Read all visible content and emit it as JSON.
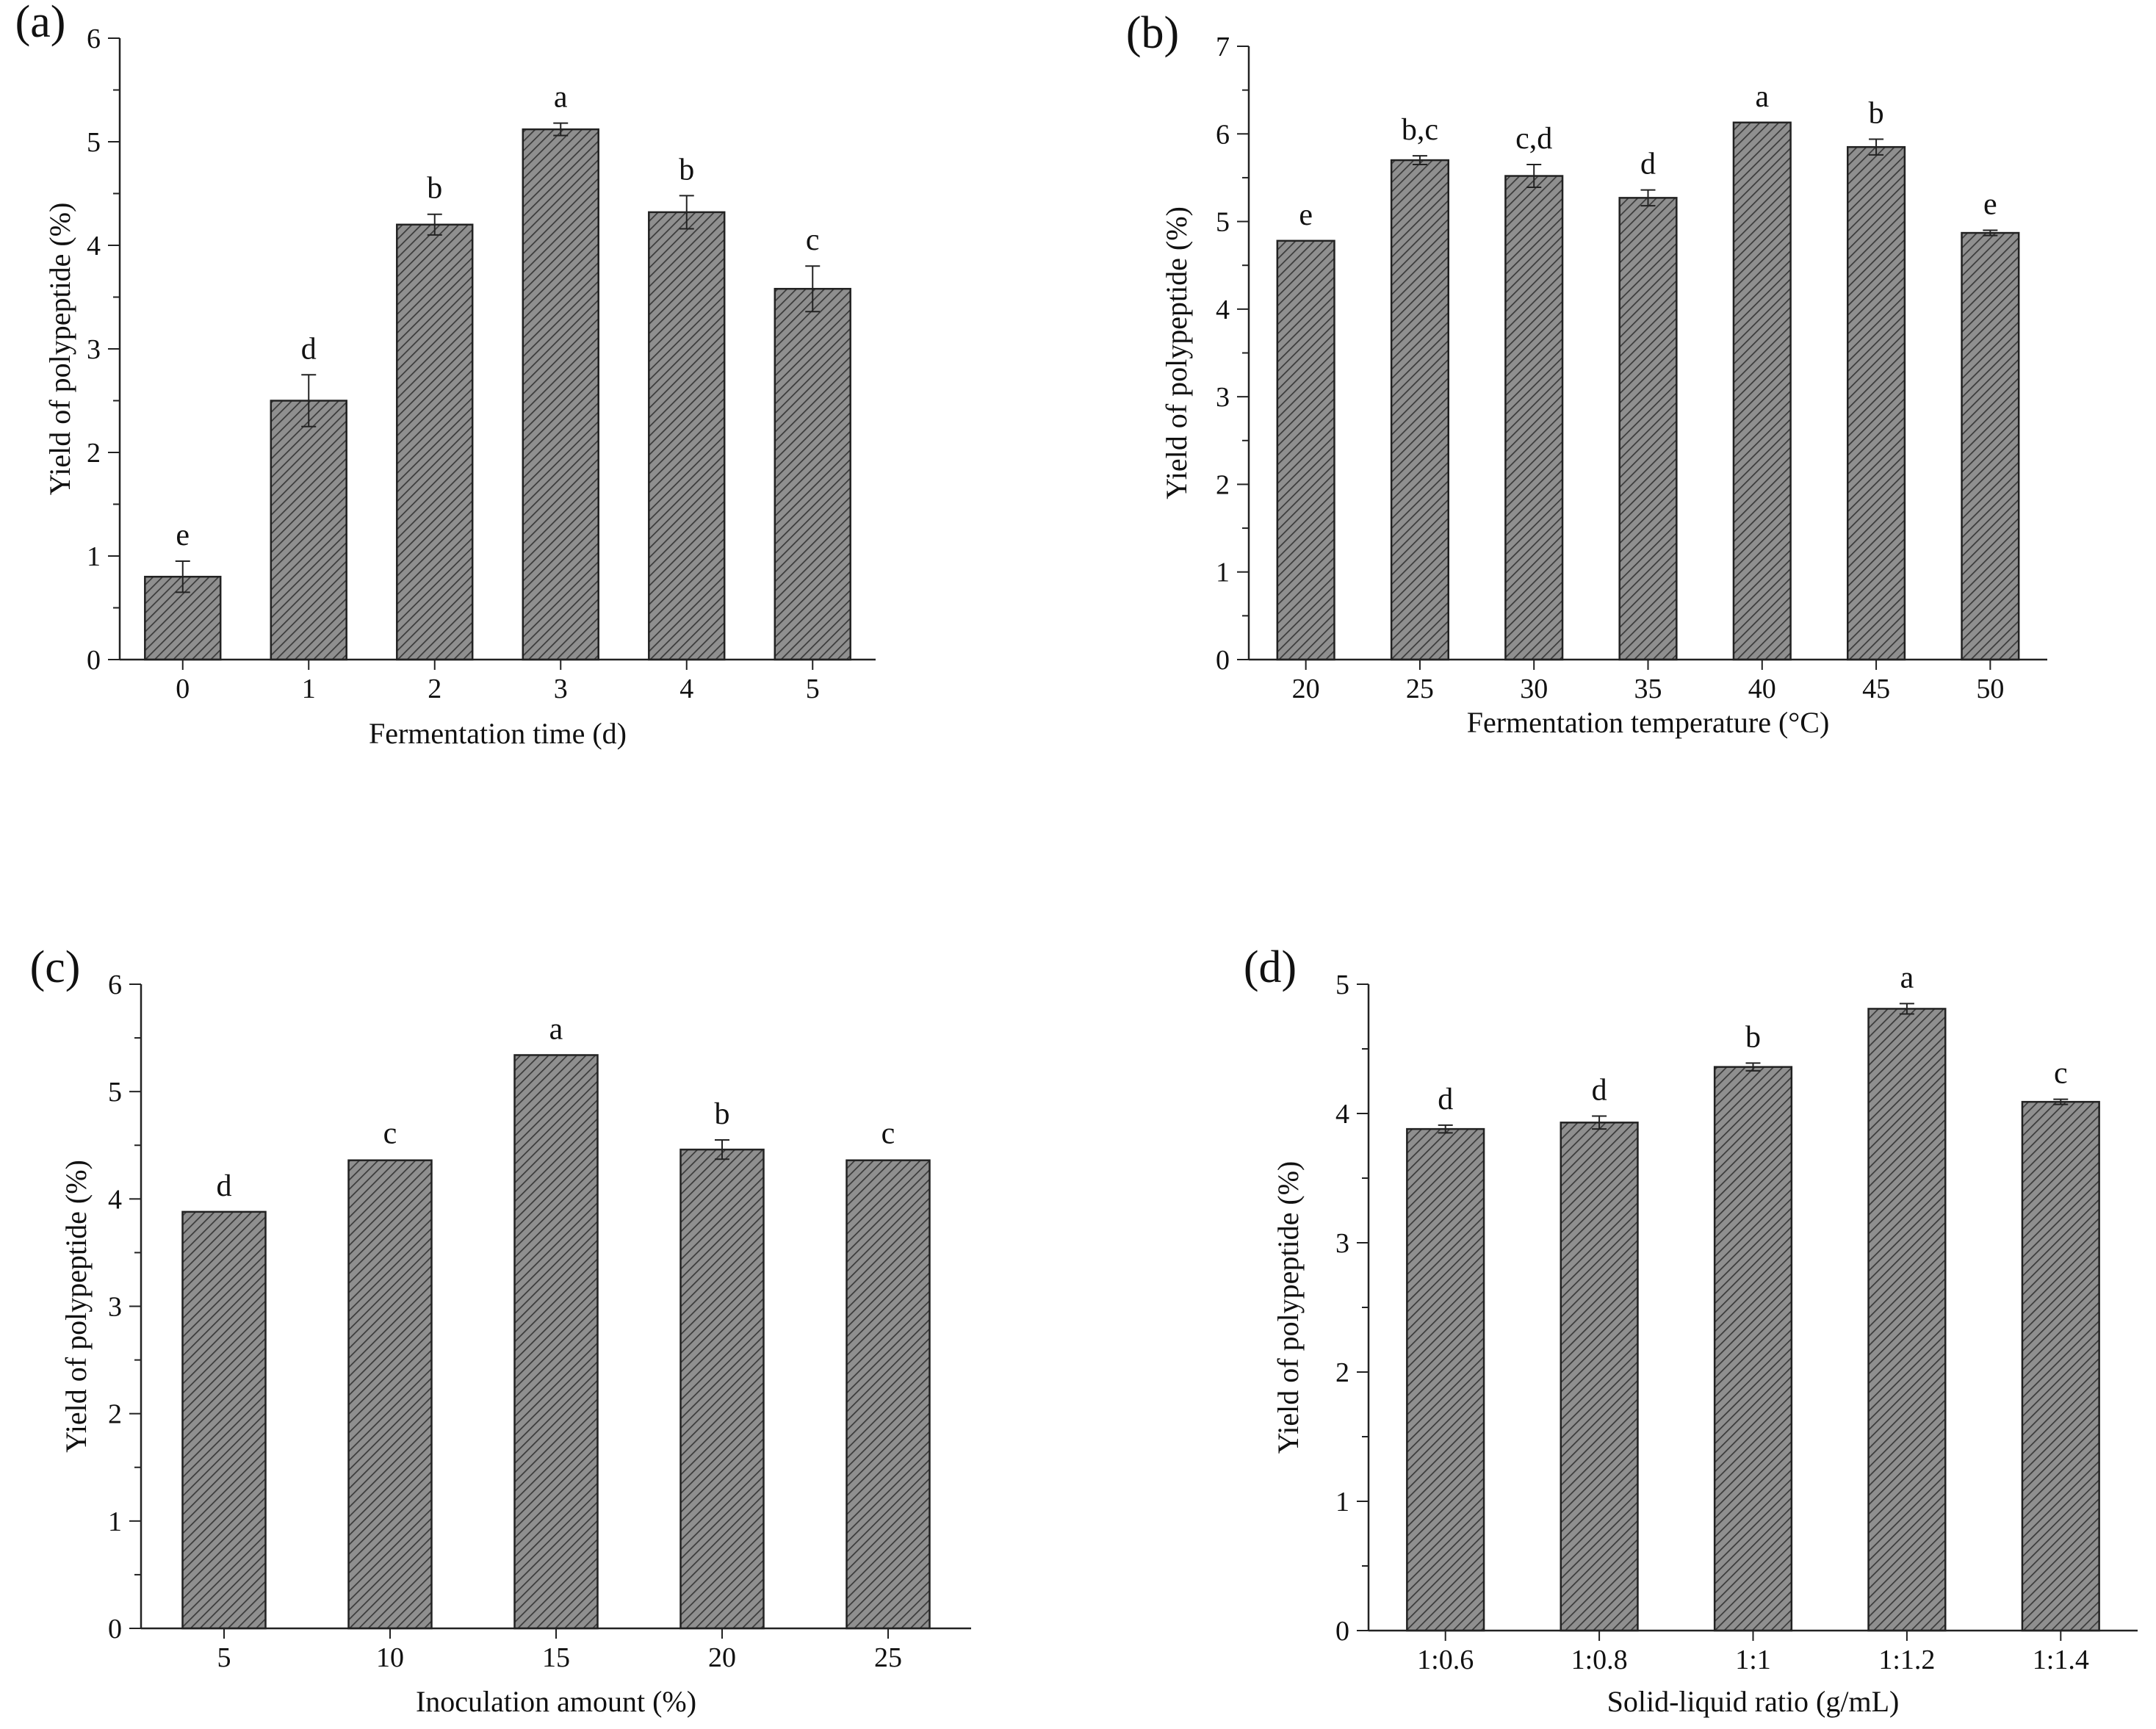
{
  "colors": {
    "bar_fill": "#8f8f8f",
    "hatch": "#3a3a3a",
    "axis": "#222222",
    "text": "#111111"
  },
  "chart_data": [
    {
      "type": "bar",
      "panel_label": "(a)",
      "title": "",
      "xlabel": "Fermentation time (d)",
      "ylabel": "Yield of polypeptide (%)",
      "ylim": [
        0,
        6
      ],
      "yticks": [
        0,
        1,
        2,
        3,
        4,
        5,
        6
      ],
      "categories": [
        "0",
        "1",
        "2",
        "3",
        "4",
        "5"
      ],
      "values": [
        0.8,
        2.5,
        4.2,
        5.12,
        4.32,
        3.58
      ],
      "errors": [
        0.15,
        0.25,
        0.1,
        0.06,
        0.16,
        0.22
      ],
      "significance": [
        "e",
        "d",
        "b",
        "a",
        "b",
        "c"
      ]
    },
    {
      "type": "bar",
      "panel_label": "(b)",
      "title": "",
      "xlabel": "Fermentation temperature (°C)",
      "ylabel": "Yield of polypeptide (%)",
      "ylim": [
        0,
        7
      ],
      "yticks": [
        0,
        1,
        2,
        3,
        4,
        5,
        6,
        7
      ],
      "categories": [
        "20",
        "25",
        "30",
        "35",
        "40",
        "45",
        "50"
      ],
      "values": [
        4.78,
        5.7,
        5.52,
        5.27,
        6.13,
        5.85,
        4.87
      ],
      "errors": [
        0.0,
        0.05,
        0.13,
        0.09,
        0.0,
        0.09,
        0.03
      ],
      "significance": [
        "e",
        "b,c",
        "c,d",
        "d",
        "a",
        "b",
        "e"
      ]
    },
    {
      "type": "bar",
      "panel_label": "(c)",
      "title": "",
      "xlabel": "Inoculation amount (%)",
      "ylabel": "Yield of polypeptide (%)",
      "ylim": [
        0,
        6
      ],
      "yticks": [
        0,
        1,
        2,
        3,
        4,
        5,
        6
      ],
      "categories": [
        "5",
        "10",
        "15",
        "20",
        "25"
      ],
      "values": [
        3.88,
        4.36,
        5.34,
        4.46,
        4.36
      ],
      "errors": [
        0.0,
        0.01,
        0.0,
        0.09,
        0.01
      ],
      "significance": [
        "d",
        "c",
        "a",
        "b",
        "c"
      ]
    },
    {
      "type": "bar",
      "panel_label": "(d)",
      "title": "",
      "xlabel": "Solid-liquid ratio (g/mL)",
      "ylabel": "Yield of polypeptide (%)",
      "ylim": [
        0,
        5
      ],
      "yticks": [
        0,
        1,
        2,
        3,
        4,
        5
      ],
      "categories": [
        "1:0.6",
        "1:0.8",
        "1:1",
        "1:1.2",
        "1:1.4"
      ],
      "values": [
        3.88,
        3.93,
        4.36,
        4.81,
        4.09
      ],
      "errors": [
        0.03,
        0.05,
        0.03,
        0.04,
        0.02
      ],
      "significance": [
        "d",
        "d",
        "b",
        "a",
        "c"
      ]
    }
  ]
}
